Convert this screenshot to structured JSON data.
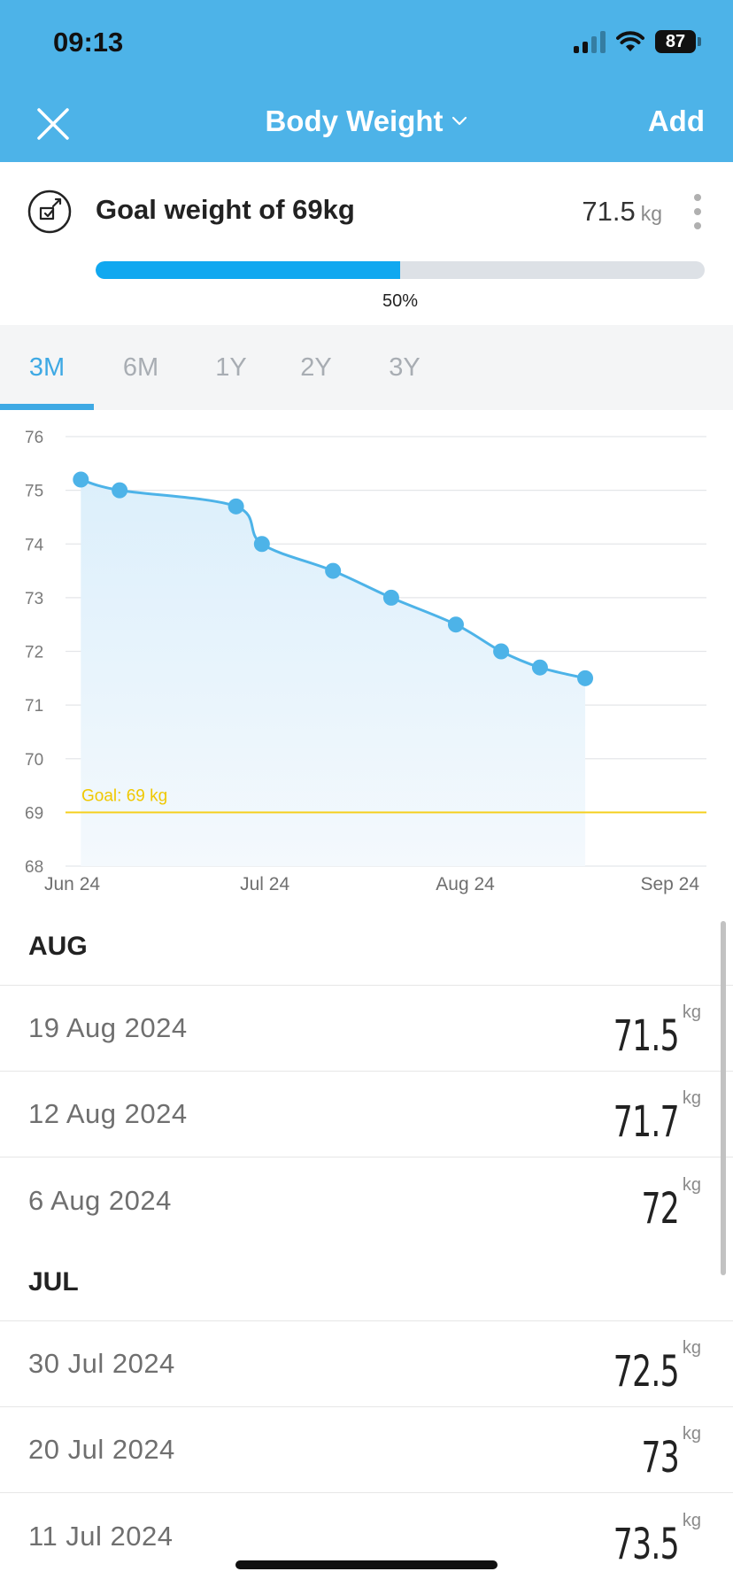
{
  "status_bar": {
    "time": "09:13",
    "battery": "87"
  },
  "nav": {
    "title": "Body Weight",
    "add_label": "Add"
  },
  "goal": {
    "title": "Goal weight of 69kg",
    "current_value": "71.5",
    "unit": "kg",
    "progress_label": "50%",
    "progress_fraction": 0.5
  },
  "tabs": [
    {
      "label": "3M",
      "active": true
    },
    {
      "label": "6M",
      "active": false
    },
    {
      "label": "1Y",
      "active": false
    },
    {
      "label": "2Y",
      "active": false
    },
    {
      "label": "3Y",
      "active": false
    }
  ],
  "chart_data": {
    "type": "area",
    "y_ticks": [
      "76",
      "75",
      "74",
      "73",
      "72",
      "71",
      "70",
      "69",
      "68"
    ],
    "ylim": [
      68,
      76
    ],
    "x_ticks": [
      "Jun 24",
      "Jul 24",
      "Aug 24",
      "Sep 24"
    ],
    "x_tick_dates": [
      "2024-06-01",
      "2024-07-01",
      "2024-08-01",
      "2024-09-01"
    ],
    "goal": {
      "value": 69,
      "label": "Goal: 69 kg"
    },
    "series": [
      {
        "points": [
          {
            "x": "2024-06-02",
            "y": 75.2
          },
          {
            "x": "2024-06-08",
            "y": 75.0
          },
          {
            "x": "2024-06-26",
            "y": 74.7
          },
          {
            "x": "2024-06-30",
            "y": 74.0
          },
          {
            "x": "2024-07-11",
            "y": 73.5
          },
          {
            "x": "2024-07-20",
            "y": 73.0
          },
          {
            "x": "2024-07-30",
            "y": 72.5
          },
          {
            "x": "2024-08-06",
            "y": 72.0
          },
          {
            "x": "2024-08-12",
            "y": 71.7
          },
          {
            "x": "2024-08-19",
            "y": 71.5
          }
        ]
      }
    ],
    "grid": true
  },
  "colors": {
    "header": "#4db3e8",
    "line": "#4db3e8",
    "goal_line": "#f5d020",
    "progress": "#10a8f0"
  },
  "list": {
    "unit": "kg",
    "sections": [
      {
        "label": "AUG",
        "entries": [
          {
            "date": "19 Aug 2024",
            "value": "71.5"
          },
          {
            "date": "12 Aug 2024",
            "value": "71.7"
          },
          {
            "date": "6 Aug 2024",
            "value": "72"
          }
        ]
      },
      {
        "label": "JUL",
        "entries": [
          {
            "date": "30 Jul 2024",
            "value": "72.5"
          },
          {
            "date": "20 Jul 2024",
            "value": "73"
          },
          {
            "date": "11 Jul 2024",
            "value": "73.5"
          }
        ]
      }
    ]
  }
}
